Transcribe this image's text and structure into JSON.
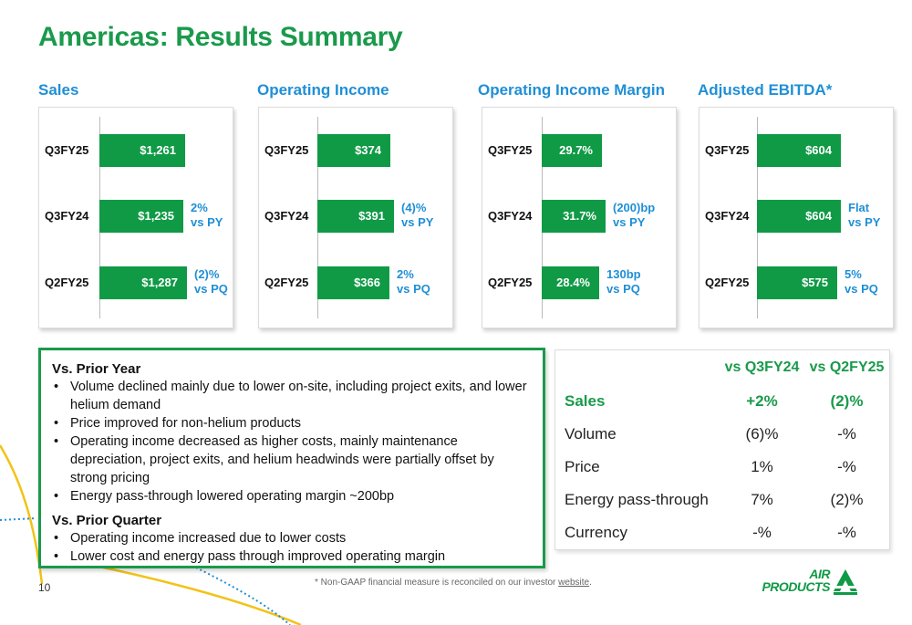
{
  "title": "Americas:  Results Summary",
  "charts": [
    {
      "title": "Sales",
      "rows": [
        {
          "period": "Q3FY25",
          "value": 1261,
          "label": "$1,261",
          "change_line1": "",
          "change_line2": ""
        },
        {
          "period": "Q3FY24",
          "value": 1235,
          "label": "$1,235",
          "change_line1": "2%",
          "change_line2": "vs PY"
        },
        {
          "period": "Q2FY25",
          "value": 1287,
          "label": "$1,287",
          "change_line1": "(2)%",
          "change_line2": "vs PQ"
        }
      ]
    },
    {
      "title": "Operating Income",
      "rows": [
        {
          "period": "Q3FY25",
          "value": 374,
          "label": "$374",
          "change_line1": "",
          "change_line2": ""
        },
        {
          "period": "Q3FY24",
          "value": 391,
          "label": "$391",
          "change_line1": "(4)%",
          "change_line2": "vs PY"
        },
        {
          "period": "Q2FY25",
          "value": 366,
          "label": "$366",
          "change_line1": "2%",
          "change_line2": "vs PQ"
        }
      ]
    },
    {
      "title": "Operating Income Margin",
      "rows": [
        {
          "period": "Q3FY25",
          "value": 29.7,
          "label": "29.7%",
          "change_line1": "",
          "change_line2": ""
        },
        {
          "period": "Q3FY24",
          "value": 31.7,
          "label": "31.7%",
          "change_line1": "(200)bp",
          "change_line2": "vs PY"
        },
        {
          "period": "Q2FY25",
          "value": 28.4,
          "label": "28.4%",
          "change_line1": "130bp",
          "change_line2": "vs PQ"
        }
      ]
    },
    {
      "title": "Adjusted EBITDA*",
      "rows": [
        {
          "period": "Q3FY25",
          "value": 604,
          "label": "$604",
          "change_line1": "",
          "change_line2": ""
        },
        {
          "period": "Q3FY24",
          "value": 604,
          "label": "$604",
          "change_line1": "Flat",
          "change_line2": "vs PY"
        },
        {
          "period": "Q2FY25",
          "value": 575,
          "label": "$575",
          "change_line1": "5%",
          "change_line2": "vs PQ"
        }
      ]
    }
  ],
  "commentary": {
    "prior_year_heading": "Vs. Prior Year",
    "prior_year_bullets": [
      "Volume declined mainly due to lower on-site, including project exits, and lower helium demand",
      "Price improved for non-helium products",
      "Operating income decreased as higher costs, mainly maintenance depreciation, project exits, and helium headwinds were partially offset by strong pricing",
      "Energy pass-through lowered operating margin ~200bp"
    ],
    "prior_quarter_heading": "Vs. Prior Quarter",
    "prior_quarter_bullets": [
      "Operating income increased due to lower costs",
      "Lower cost and energy pass through improved operating margin"
    ]
  },
  "variance_table": {
    "headers": [
      "",
      "vs Q3FY24",
      "vs Q2FY25"
    ],
    "rows": [
      {
        "name": "Sales",
        "vs_py": "+2%",
        "vs_pq": "(2)%"
      },
      {
        "name": "Volume",
        "vs_py": "(6)%",
        "vs_pq": "-%"
      },
      {
        "name": "Price",
        "vs_py": "1%",
        "vs_pq": "-%"
      },
      {
        "name": "Energy pass-through",
        "vs_py": "7%",
        "vs_pq": "(2)%"
      },
      {
        "name": "Currency",
        "vs_py": "-%",
        "vs_pq": "-%"
      }
    ]
  },
  "footer": {
    "page_number": "10",
    "footnote_text": "* Non-GAAP financial measure is reconciled on our investor ",
    "footnote_link": "website",
    "footnote_end": "."
  },
  "logo": {
    "line1": "AIR",
    "line2": "PRODUCTS"
  },
  "chart_data": [
    {
      "type": "bar",
      "title": "Sales",
      "categories": [
        "Q3FY25",
        "Q3FY24",
        "Q2FY25"
      ],
      "values": [
        1261,
        1235,
        1287
      ]
    },
    {
      "type": "bar",
      "title": "Operating Income",
      "categories": [
        "Q3FY25",
        "Q3FY24",
        "Q2FY25"
      ],
      "values": [
        374,
        391,
        366
      ]
    },
    {
      "type": "bar",
      "title": "Operating Income Margin",
      "categories": [
        "Q3FY25",
        "Q3FY24",
        "Q2FY25"
      ],
      "values": [
        29.7,
        31.7,
        28.4
      ]
    },
    {
      "type": "bar",
      "title": "Adjusted EBITDA*",
      "categories": [
        "Q3FY25",
        "Q3FY24",
        "Q2FY25"
      ],
      "values": [
        604,
        604,
        575
      ]
    }
  ],
  "colors": {
    "green": "#1a9a4b",
    "bar_green": "#109a46",
    "blue": "#1f8fd6",
    "yellow": "#f2c318"
  }
}
